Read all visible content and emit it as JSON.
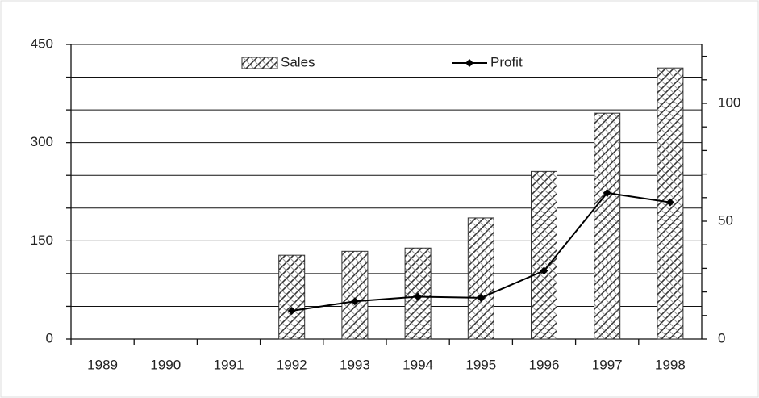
{
  "chart_data": {
    "type": "bar_line",
    "categories": [
      "1989",
      "1990",
      "1991",
      "1992",
      "1993",
      "1994",
      "1995",
      "1996",
      "1997",
      "1998"
    ],
    "series": [
      {
        "name": "Sales",
        "type": "bar",
        "color": "#555555",
        "values": [
          null,
          null,
          null,
          128,
          134,
          139,
          185,
          256,
          345,
          414
        ]
      },
      {
        "name": "Profit",
        "type": "line",
        "axis": "y2",
        "color": "#000000",
        "values": [
          null,
          null,
          null,
          12,
          16,
          18,
          17.5,
          29,
          62,
          58
        ]
      }
    ],
    "ylim": [
      0,
      450
    ],
    "yticks": [
      0,
      150,
      300,
      450
    ],
    "yminor": [
      50,
      100,
      200,
      250,
      350,
      400
    ],
    "y2lim": [
      0,
      125
    ],
    "y2ticks": [
      0,
      50,
      100
    ],
    "y2minor": [
      10,
      20,
      30,
      40,
      60,
      70,
      80,
      90,
      110,
      120
    ],
    "grid": true,
    "legend": "top"
  }
}
